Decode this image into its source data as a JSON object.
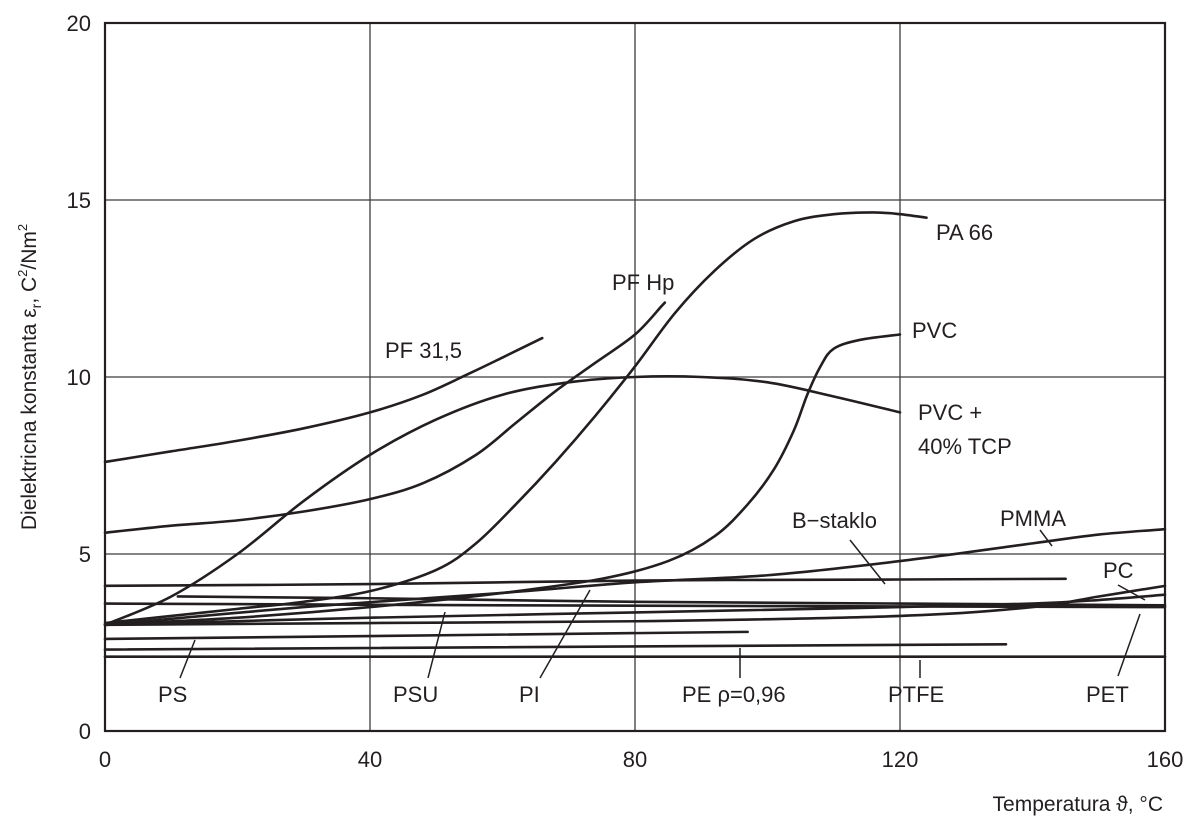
{
  "chart_data": {
    "type": "line",
    "title": "",
    "xlabel": "Temperatura ϑ, °C",
    "ylabel": "Dielektricna konstanta ε",
    "ylabel_sub": "r",
    "ylabel_unit_pre": ", C",
    "ylabel_unit_sup1": "2",
    "ylabel_unit_mid": "/Nm",
    "ylabel_unit_sup2": "2",
    "xlim": [
      0,
      160
    ],
    "ylim": [
      0,
      20
    ],
    "xticks": [
      0,
      40,
      80,
      120,
      160
    ],
    "yticks": [
      0,
      5,
      10,
      15,
      20
    ],
    "xtick_labels": [
      "0",
      "40",
      "80",
      "120",
      "160"
    ],
    "ytick_labels": [
      "0",
      "5",
      "10",
      "15",
      "20"
    ],
    "grid": true,
    "series": [
      {
        "name": "PF 31,5",
        "label_lines": [
          "PF 31,5"
        ],
        "points": [
          [
            0,
            7.6
          ],
          [
            10,
            7.9
          ],
          [
            20,
            8.2
          ],
          [
            30,
            8.55
          ],
          [
            40,
            9.0
          ],
          [
            48,
            9.5
          ],
          [
            55,
            10.1
          ],
          [
            60,
            10.55
          ],
          [
            66,
            11.1
          ]
        ]
      },
      {
        "name": "PF Hp",
        "label_lines": [
          "PF Hp"
        ],
        "points": [
          [
            0,
            5.6
          ],
          [
            10,
            5.8
          ],
          [
            20,
            5.95
          ],
          [
            30,
            6.2
          ],
          [
            40,
            6.55
          ],
          [
            48,
            7.0
          ],
          [
            56,
            7.8
          ],
          [
            62,
            8.7
          ],
          [
            68,
            9.6
          ],
          [
            74,
            10.4
          ],
          [
            80,
            11.2
          ],
          [
            84,
            12.0
          ],
          [
            84.5,
            12.1
          ]
        ]
      },
      {
        "name": "PA 66",
        "label_lines": [
          "PA 66"
        ],
        "points": [
          [
            0,
            3.05
          ],
          [
            10,
            3.25
          ],
          [
            20,
            3.45
          ],
          [
            30,
            3.65
          ],
          [
            40,
            3.95
          ],
          [
            50,
            4.55
          ],
          [
            56,
            5.3
          ],
          [
            62,
            6.4
          ],
          [
            68,
            7.6
          ],
          [
            74,
            8.9
          ],
          [
            80,
            10.3
          ],
          [
            86,
            11.8
          ],
          [
            92,
            13.0
          ],
          [
            98,
            13.9
          ],
          [
            104,
            14.4
          ],
          [
            110,
            14.6
          ],
          [
            116,
            14.65
          ],
          [
            120,
            14.6
          ],
          [
            124,
            14.5
          ]
        ]
      },
      {
        "name": "PVC",
        "label_lines": [
          "PVC"
        ],
        "points": [
          [
            0,
            3.0
          ],
          [
            20,
            3.2
          ],
          [
            40,
            3.5
          ],
          [
            60,
            3.9
          ],
          [
            75,
            4.3
          ],
          [
            85,
            4.8
          ],
          [
            92,
            5.5
          ],
          [
            97,
            6.4
          ],
          [
            101,
            7.4
          ],
          [
            104,
            8.5
          ],
          [
            106,
            9.5
          ],
          [
            108,
            10.3
          ],
          [
            110,
            10.8
          ],
          [
            114,
            11.05
          ],
          [
            120,
            11.2
          ]
        ]
      },
      {
        "name": "PVC + 40% TCP",
        "label_lines": [
          "PVC +",
          "40% TCP"
        ],
        "points": [
          [
            0,
            3.0
          ],
          [
            10,
            3.8
          ],
          [
            20,
            5.0
          ],
          [
            30,
            6.5
          ],
          [
            40,
            7.8
          ],
          [
            50,
            8.8
          ],
          [
            60,
            9.5
          ],
          [
            70,
            9.85
          ],
          [
            80,
            10.0
          ],
          [
            90,
            10.0
          ],
          [
            100,
            9.85
          ],
          [
            110,
            9.45
          ],
          [
            120,
            9.0
          ]
        ]
      },
      {
        "name": "B-staklo",
        "label_lines": [
          "B−staklo"
        ],
        "points": [
          [
            0,
            4.1
          ],
          [
            40,
            4.15
          ],
          [
            80,
            4.25
          ],
          [
            120,
            4.28
          ],
          [
            145,
            4.3
          ]
        ]
      },
      {
        "name": "PMMA",
        "label_lines": [
          "PMMA"
        ],
        "points": [
          [
            0,
            3.0
          ],
          [
            30,
            3.5
          ],
          [
            60,
            3.9
          ],
          [
            80,
            4.2
          ],
          [
            100,
            4.4
          ],
          [
            120,
            4.8
          ],
          [
            140,
            5.3
          ],
          [
            150,
            5.55
          ],
          [
            160,
            5.7
          ]
        ]
      },
      {
        "name": "PC",
        "label_lines": [
          "PC"
        ],
        "points": [
          [
            0,
            3.0
          ],
          [
            40,
            3.05
          ],
          [
            80,
            3.1
          ],
          [
            120,
            3.25
          ],
          [
            140,
            3.5
          ],
          [
            150,
            3.8
          ],
          [
            160,
            4.1
          ]
        ]
      },
      {
        "name": "PET",
        "label_lines": [
          "PET"
        ],
        "points": [
          [
            0,
            3.0
          ],
          [
            40,
            3.2
          ],
          [
            80,
            3.35
          ],
          [
            120,
            3.5
          ],
          [
            140,
            3.6
          ],
          [
            150,
            3.7
          ],
          [
            160,
            3.85
          ]
        ]
      },
      {
        "name": "PSU",
        "label_lines": [
          "PSU"
        ],
        "points": [
          [
            11,
            3.8
          ],
          [
            40,
            3.75
          ],
          [
            80,
            3.65
          ],
          [
            120,
            3.6
          ],
          [
            160,
            3.55
          ]
        ]
      },
      {
        "name": "PI",
        "label_lines": [
          "PI"
        ],
        "points": [
          [
            0,
            3.6
          ],
          [
            60,
            3.55
          ],
          [
            160,
            3.5
          ]
        ]
      },
      {
        "name": "PS",
        "label_lines": [
          "PS"
        ],
        "points": [
          [
            0,
            2.6
          ],
          [
            97,
            2.8
          ]
        ]
      },
      {
        "name": "PE ρ=0,96",
        "label_lines": [
          "PE ρ=0,96"
        ],
        "points": [
          [
            0,
            2.3
          ],
          [
            136,
            2.45
          ]
        ]
      },
      {
        "name": "PTFE",
        "label_lines": [
          "PTFE"
        ],
        "points": [
          [
            0,
            2.1
          ],
          [
            160,
            2.1
          ]
        ]
      }
    ]
  }
}
